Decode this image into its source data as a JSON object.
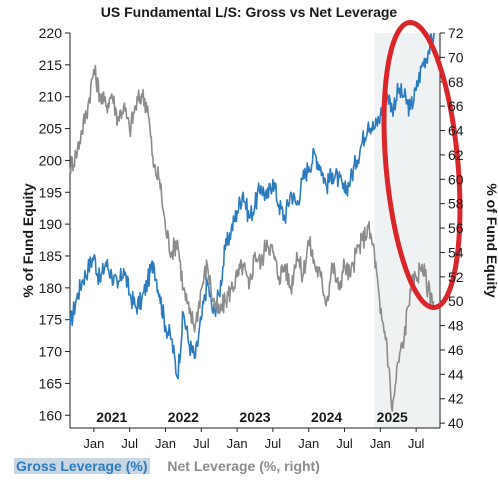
{
  "chart_data": {
    "type": "line",
    "title": "US Fundamental L/S: Gross vs Net Leverage",
    "ylabel_left": "% of Fund Equity",
    "ylabel_right": "% of Fund Equity",
    "y_left_range": [
      158,
      220
    ],
    "y_left_ticks": [
      160,
      165,
      170,
      175,
      180,
      185,
      190,
      195,
      200,
      205,
      210,
      215,
      220
    ],
    "y_right_range": [
      39.6,
      72
    ],
    "y_right_ticks": [
      40,
      42,
      44,
      46,
      48,
      50,
      52,
      54,
      56,
      58,
      60,
      62,
      64,
      66,
      68,
      70,
      72
    ],
    "x_range": [
      "2020-09",
      "2025-11"
    ],
    "year_labels": [
      {
        "label": "2021",
        "x": "2021-04"
      },
      {
        "label": "2022",
        "x": "2022-04"
      },
      {
        "label": "2023",
        "x": "2023-04"
      },
      {
        "label": "2024",
        "x": "2024-04"
      },
      {
        "label": "2025",
        "x": "2025-03"
      }
    ],
    "month_ticks": [
      {
        "label": "Jan",
        "x": "2021-01"
      },
      {
        "label": "Jul",
        "x": "2021-07"
      },
      {
        "label": "Jan",
        "x": "2022-01"
      },
      {
        "label": "Jul",
        "x": "2022-07"
      },
      {
        "label": "Jan",
        "x": "2023-01"
      },
      {
        "label": "Jul",
        "x": "2023-07"
      },
      {
        "label": "Jan",
        "x": "2024-01"
      },
      {
        "label": "Jul",
        "x": "2024-07"
      },
      {
        "label": "Jan",
        "x": "2025-01"
      },
      {
        "label": "Jul",
        "x": "2025-07"
      }
    ],
    "shaded_region": [
      "2024-12",
      "2025-11"
    ],
    "annotation": {
      "type": "ellipse",
      "color": "#d9262b",
      "around": "2025 right edge"
    },
    "grid": false,
    "legend_position": "bottom-left",
    "series": [
      {
        "name": "Gross Leverage (%)",
        "axis": "left",
        "color": "#2b7bbd",
        "points": [
          [
            "2020-09",
            174
          ],
          [
            "2020-10",
            178
          ],
          [
            "2020-11",
            181
          ],
          [
            "2020-12",
            183
          ],
          [
            "2021-01",
            185
          ],
          [
            "2021-02",
            181
          ],
          [
            "2021-03",
            184
          ],
          [
            "2021-04",
            182
          ],
          [
            "2021-05",
            180
          ],
          [
            "2021-06",
            183
          ],
          [
            "2021-07",
            179
          ],
          [
            "2021-08",
            177
          ],
          [
            "2021-09",
            178
          ],
          [
            "2021-10",
            181
          ],
          [
            "2021-11",
            184
          ],
          [
            "2021-12",
            179
          ],
          [
            "2022-01",
            174
          ],
          [
            "2022-02",
            172
          ],
          [
            "2022-03",
            166
          ],
          [
            "2022-04",
            176
          ],
          [
            "2022-05",
            171
          ],
          [
            "2022-06",
            169
          ],
          [
            "2022-07",
            175
          ],
          [
            "2022-08",
            181
          ],
          [
            "2022-09",
            176
          ],
          [
            "2022-10",
            179
          ],
          [
            "2022-11",
            186
          ],
          [
            "2022-12",
            189
          ],
          [
            "2023-01",
            192
          ],
          [
            "2023-02",
            195
          ],
          [
            "2023-03",
            191
          ],
          [
            "2023-04",
            193
          ],
          [
            "2023-05",
            196
          ],
          [
            "2023-06",
            194
          ],
          [
            "2023-07",
            197
          ],
          [
            "2023-08",
            193
          ],
          [
            "2023-09",
            191
          ],
          [
            "2023-10",
            195
          ],
          [
            "2023-11",
            193
          ],
          [
            "2023-12",
            197
          ],
          [
            "2024-01",
            199
          ],
          [
            "2024-02",
            201
          ],
          [
            "2024-03",
            199
          ],
          [
            "2024-04",
            196
          ],
          [
            "2024-05",
            198
          ],
          [
            "2024-06",
            197
          ],
          [
            "2024-07",
            195
          ],
          [
            "2024-08",
            197
          ],
          [
            "2024-09",
            200
          ],
          [
            "2024-10",
            203
          ],
          [
            "2024-11",
            206
          ],
          [
            "2024-12",
            205
          ],
          [
            "2025-01",
            207
          ],
          [
            "2025-02",
            211
          ],
          [
            "2025-03",
            208
          ],
          [
            "2025-04",
            211
          ],
          [
            "2025-05",
            210
          ],
          [
            "2025-06",
            208
          ],
          [
            "2025-07",
            211
          ],
          [
            "2025-08",
            215
          ],
          [
            "2025-09",
            217
          ],
          [
            "2025-10",
            220
          ]
        ]
      },
      {
        "name": "Net Leverage (%, right)",
        "axis": "right",
        "color": "#8c8c8c",
        "points": [
          [
            "2020-09",
            61
          ],
          [
            "2020-10",
            62
          ],
          [
            "2020-11",
            64
          ],
          [
            "2020-12",
            66
          ],
          [
            "2021-01",
            69
          ],
          [
            "2021-02",
            67
          ],
          [
            "2021-03",
            66
          ],
          [
            "2021-04",
            67
          ],
          [
            "2021-05",
            65
          ],
          [
            "2021-06",
            66
          ],
          [
            "2021-07",
            64
          ],
          [
            "2021-08",
            66
          ],
          [
            "2021-09",
            67
          ],
          [
            "2021-10",
            66
          ],
          [
            "2021-11",
            61
          ],
          [
            "2021-12",
            60
          ],
          [
            "2022-01",
            56
          ],
          [
            "2022-02",
            54
          ],
          [
            "2022-03",
            55
          ],
          [
            "2022-04",
            51
          ],
          [
            "2022-05",
            49
          ],
          [
            "2022-06",
            48
          ],
          [
            "2022-07",
            51
          ],
          [
            "2022-08",
            53
          ],
          [
            "2022-09",
            50
          ],
          [
            "2022-10",
            49
          ],
          [
            "2022-11",
            50
          ],
          [
            "2022-12",
            51
          ],
          [
            "2023-01",
            52
          ],
          [
            "2023-02",
            53
          ],
          [
            "2023-03",
            51
          ],
          [
            "2023-04",
            54
          ],
          [
            "2023-05",
            53
          ],
          [
            "2023-06",
            55
          ],
          [
            "2023-07",
            54
          ],
          [
            "2023-08",
            52
          ],
          [
            "2023-09",
            53
          ],
          [
            "2023-10",
            51
          ],
          [
            "2023-11",
            54
          ],
          [
            "2023-12",
            52
          ],
          [
            "2024-01",
            55
          ],
          [
            "2024-02",
            53
          ],
          [
            "2024-03",
            52
          ],
          [
            "2024-04",
            50
          ],
          [
            "2024-05",
            53
          ],
          [
            "2024-06",
            51
          ],
          [
            "2024-07",
            53
          ],
          [
            "2024-08",
            52
          ],
          [
            "2024-09",
            54
          ],
          [
            "2024-10",
            55
          ],
          [
            "2024-11",
            56
          ],
          [
            "2024-12",
            54
          ],
          [
            "2025-01",
            49
          ],
          [
            "2025-02",
            47
          ],
          [
            "2025-03",
            41
          ],
          [
            "2025-04",
            45
          ],
          [
            "2025-05",
            47
          ],
          [
            "2025-06",
            51
          ],
          [
            "2025-07",
            52
          ],
          [
            "2025-08",
            53
          ],
          [
            "2025-09",
            51
          ],
          [
            "2025-10",
            50
          ]
        ]
      }
    ]
  },
  "legend": {
    "gross": "Gross Leverage (%)",
    "net": "Net Leverage (%, right)"
  }
}
